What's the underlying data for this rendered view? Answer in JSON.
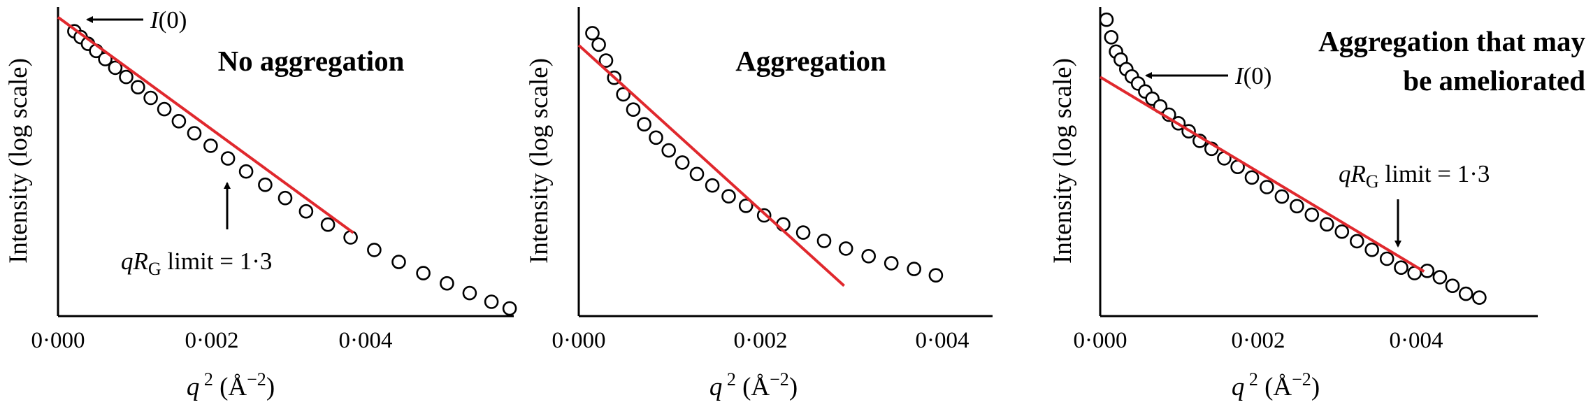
{
  "colors": {
    "fit_line": "#e0282d",
    "marker_edge": "#000000",
    "marker_fill": "#ffffff"
  },
  "chart_data": [
    {
      "type": "scatter",
      "title": "No aggregation",
      "xlabel": "q 2 (Å−2)",
      "ylabel": "Intensity (log scale)",
      "xlim": [
        0,
        0.005
      ],
      "xticks": [
        "0·000",
        "0·002",
        "0·004"
      ],
      "ylog": true,
      "grid": false,
      "series": [
        {
          "kind": "points",
          "x": [
            0.00018,
            0.00025,
            0.00033,
            0.00042,
            0.00052,
            0.00063,
            0.00075,
            0.00088,
            0.00102,
            0.00117,
            0.00133,
            0.0015,
            0.00168,
            0.00187,
            0.00207,
            0.00228,
            0.0025,
            0.00273,
            0.00297,
            0.00322,
            0.00348,
            0.00375,
            0.00402,
            0.00428,
            0.00453,
            0.00477,
            0.00497
          ],
          "y": [
            0.985,
            0.962,
            0.936,
            0.908,
            0.876,
            0.842,
            0.806,
            0.766,
            0.724,
            0.68,
            0.633,
            0.586,
            0.537,
            0.487,
            0.436,
            0.384,
            0.332,
            0.28,
            0.228,
            0.178,
            0.129,
            0.082,
            0.038,
            -0.002,
            -0.04,
            -0.074,
            -0.1
          ]
        },
        {
          "kind": "fit",
          "x": [
            0.0,
            0.00325
          ],
          "y": [
            1.04,
            0.196
          ]
        }
      ],
      "annotations": [
        {
          "label": "I(0)"
        },
        {
          "label": "qRG limit = 1·3"
        }
      ]
    },
    {
      "type": "scatter",
      "title": "Aggregation",
      "xlabel": "q 2 (Å−2)",
      "ylabel": "Intensity (log scale)",
      "xlim": [
        0,
        0.004
      ],
      "xticks": [
        "0·000",
        "0·002",
        "0·004"
      ],
      "ylog": true,
      "grid": false,
      "series": [
        {
          "kind": "points",
          "x": [
            0.00015,
            0.00022,
            0.0003,
            0.00039,
            0.00049,
            0.0006,
            0.00072,
            0.00085,
            0.00099,
            0.00114,
            0.0013,
            0.00147,
            0.00165,
            0.00184,
            0.00204,
            0.00225,
            0.00247,
            0.0027,
            0.00294,
            0.00319,
            0.00344,
            0.00369,
            0.00393
          ],
          "y": [
            0.998,
            0.962,
            0.912,
            0.858,
            0.806,
            0.758,
            0.712,
            0.67,
            0.63,
            0.592,
            0.556,
            0.52,
            0.486,
            0.456,
            0.426,
            0.398,
            0.372,
            0.346,
            0.322,
            0.298,
            0.276,
            0.258,
            0.238
          ]
        },
        {
          "kind": "fit",
          "x": [
            0.0,
            0.00292
          ],
          "y": [
            0.96,
            0.205
          ]
        }
      ]
    },
    {
      "type": "scatter",
      "title": "Aggregation that may be ameliorated",
      "xlabel": "q 2 (Å−2)",
      "ylabel": "Intensity (log scale)",
      "xlim": [
        0,
        0.005
      ],
      "xticks": [
        "0·000",
        "0·002",
        "0·004"
      ],
      "ylog": true,
      "grid": false,
      "series": [
        {
          "kind": "points",
          "x": [
            8e-05,
            0.00014,
            0.0002,
            0.00026,
            0.00033,
            0.0004,
            0.00048,
            0.00057,
            0.00066,
            0.00076,
            0.00087,
            0.00099,
            0.00112,
            0.00126,
            0.00141,
            0.00157,
            0.00174,
            0.00192,
            0.00211,
            0.0023,
            0.00249,
            0.00268,
            0.00287,
            0.00306,
            0.00325,
            0.00344,
            0.00363,
            0.00381,
            0.00398,
            0.00414,
            0.0043,
            0.00446,
            0.00463,
            0.0048
          ],
          "y": [
            1.04,
            0.985,
            0.94,
            0.915,
            0.885,
            0.862,
            0.84,
            0.815,
            0.792,
            0.768,
            0.742,
            0.715,
            0.69,
            0.66,
            0.635,
            0.605,
            0.578,
            0.545,
            0.515,
            0.485,
            0.455,
            0.428,
            0.398,
            0.375,
            0.345,
            0.318,
            0.29,
            0.262,
            0.245,
            0.252,
            0.232,
            0.205,
            0.18,
            0.168
          ]
        },
        {
          "kind": "fit",
          "x": [
            0.0,
            0.0041
          ],
          "y": [
            0.86,
            0.25
          ]
        }
      ],
      "annotations": [
        {
          "label": "I(0)"
        },
        {
          "label": "qRG limit = 1·3"
        }
      ]
    }
  ]
}
